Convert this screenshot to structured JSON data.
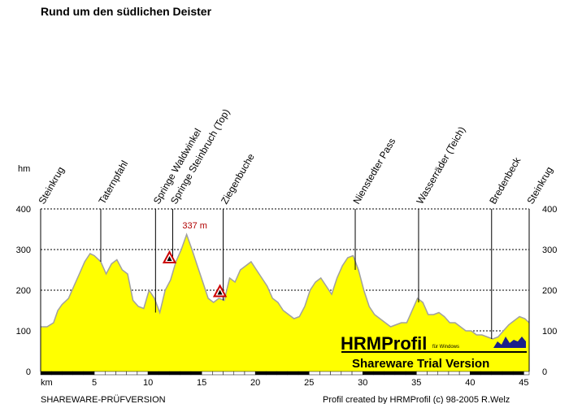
{
  "chart_data": {
    "type": "area",
    "title": "Rund um den südlichen Deister",
    "ylabel": "hm",
    "xlabel": "km",
    "xlim": [
      0,
      45.5
    ],
    "ylim": [
      0,
      400
    ],
    "x_ticks": [
      0,
      5,
      10,
      15,
      20,
      25,
      30,
      35,
      40,
      45
    ],
    "y_ticks": [
      0,
      100,
      200,
      300,
      400
    ],
    "grid": true,
    "fill_color": "#ffff00",
    "line_color": "#a0a0a0",
    "series": [
      {
        "x": [
          0,
          0.6,
          1.2,
          1.6,
          2.0,
          2.6,
          3.1,
          3.6,
          4.1,
          4.6,
          5.0,
          5.6,
          6.1,
          6.6,
          7.1,
          7.6,
          8.1,
          8.6,
          9.1,
          9.6,
          10.1,
          10.6,
          11.1,
          11.6,
          12.1,
          12.6,
          13.1,
          13.6,
          14.1,
          14.6,
          15.1,
          15.6,
          16.1,
          16.6,
          17.1,
          17.6,
          18.1,
          18.6,
          19.1,
          19.6,
          20.1,
          20.6,
          21.1,
          21.6,
          22.1,
          22.6,
          23.1,
          23.6,
          24.1,
          24.6,
          25.1,
          25.6,
          26.1,
          26.6,
          27.1,
          27.6,
          28.1,
          28.6,
          29.1,
          29.6,
          30.1,
          30.6,
          31.1,
          31.6,
          32.1,
          32.6,
          33.1,
          33.6,
          34.1,
          34.6,
          35.1,
          35.6,
          36.1,
          36.6,
          37.1,
          37.6,
          38.1,
          38.6,
          39.1,
          39.6,
          40.1,
          40.6,
          41.1,
          41.6,
          42.1,
          42.6,
          43.1,
          43.6,
          44.1,
          44.6,
          45.1,
          45.5
        ],
        "y": [
          110,
          110,
          120,
          150,
          165,
          180,
          210,
          240,
          270,
          290,
          285,
          270,
          240,
          265,
          275,
          250,
          240,
          175,
          160,
          155,
          200,
          180,
          145,
          200,
          225,
          270,
          300,
          337,
          300,
          260,
          220,
          180,
          170,
          180,
          175,
          230,
          220,
          250,
          260,
          270,
          250,
          230,
          210,
          180,
          170,
          150,
          140,
          130,
          135,
          160,
          200,
          220,
          230,
          210,
          190,
          230,
          260,
          280,
          285,
          250,
          200,
          160,
          140,
          130,
          120,
          110,
          115,
          120,
          120,
          150,
          180,
          170,
          140,
          140,
          145,
          135,
          120,
          120,
          110,
          100,
          100,
          90,
          90,
          85,
          80,
          85,
          100,
          115,
          125,
          135,
          130,
          120
        ]
      }
    ],
    "waypoints": [
      {
        "label": "Steinkrug",
        "x": 0.0
      },
      {
        "label": "Taternpfahl",
        "x": 5.6
      },
      {
        "label": "Springe Waldwinkel",
        "x": 10.7
      },
      {
        "label": "Springe Steinbruch (Top)",
        "x": 12.3
      },
      {
        "label": "Ziegenbuche",
        "x": 17.0
      },
      {
        "label": "Nienstedter Pass",
        "x": 29.3
      },
      {
        "label": "Wasserräder (Teich)",
        "x": 35.2
      },
      {
        "label": "Bredenbeck",
        "x": 42.0
      },
      {
        "label": "Steinkrug",
        "x": 45.5
      }
    ],
    "annotations": [
      {
        "text": "337 m",
        "x": 13.2,
        "y": 352,
        "color": "#b00000"
      }
    ],
    "warning_markers": [
      {
        "x": 12.0,
        "y": 278
      },
      {
        "x": 16.7,
        "y": 195
      }
    ]
  },
  "footer": {
    "left": "SHAREWARE-PRÜFVERSION",
    "right": "Profil created by HRMProfil (c) 98-2005 R.Welz"
  },
  "logo": {
    "name": "HRMProfil",
    "small": "für Windows",
    "subtitle": "Shareware Trial  Version"
  }
}
